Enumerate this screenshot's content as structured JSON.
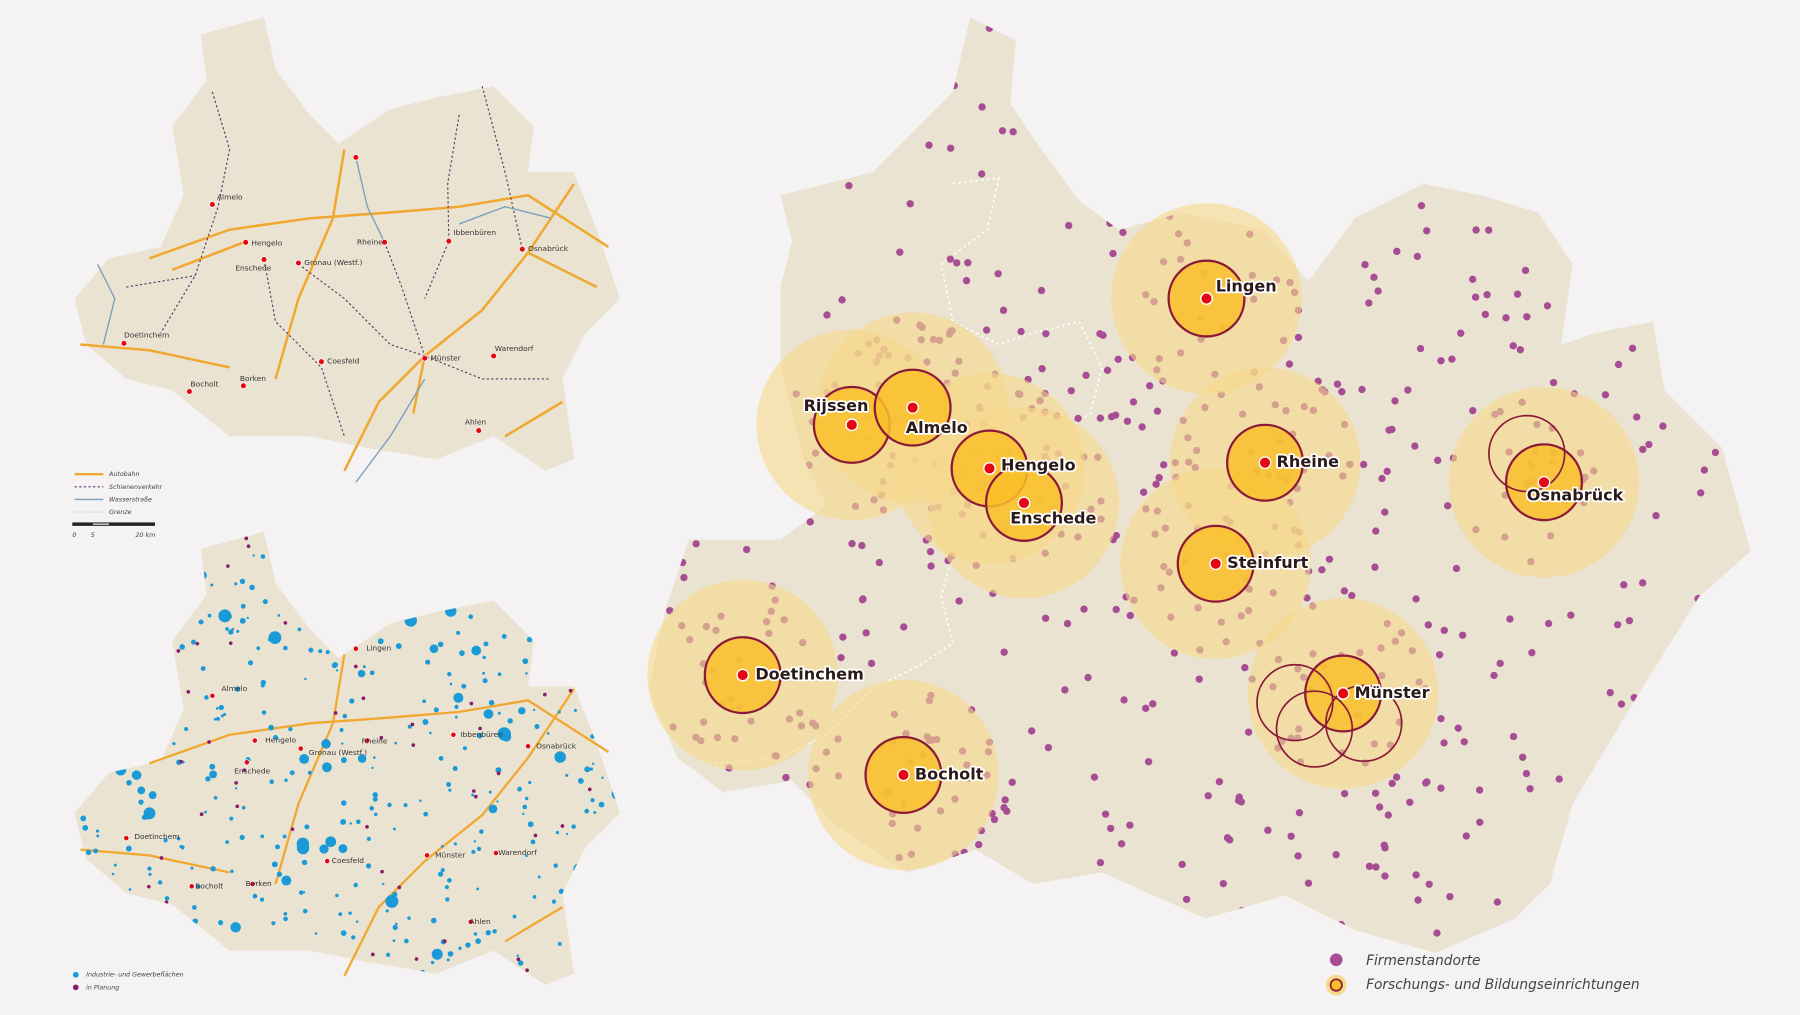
{
  "main_map": {
    "cities": [
      "Lingen",
      "Rijssen",
      "Almelo",
      "Hengelo",
      "Enschede",
      "Rheine",
      "Osnabrück",
      "Steinfurt",
      "Doetinchem",
      "Münster",
      "Bocholt"
    ],
    "legend": [
      "Firmenstandorte",
      "Forschungs- und Bildungseinrichtungen"
    ]
  },
  "overview_map": {
    "cities": [
      "Almelo",
      "Hengelo",
      "Enschede",
      "Gronau (Westf.)",
      "Rheine",
      "Ibbenbüren",
      "Osnabrück",
      "Doetinchem",
      "Coesfeld",
      "Münster",
      "Warendorf",
      "Bocholt",
      "Borken",
      "Ahlen"
    ],
    "legend": [
      "Autobahn",
      "Schienenverkehr",
      "Wasserstraße",
      "Grenze"
    ],
    "scale": [
      "0",
      "5",
      "20 km"
    ]
  },
  "planning_map": {
    "cities": [
      "Lingen",
      "Almelo",
      "Hengelo",
      "Enschede",
      "Gronau (Westf.)",
      "Rheine",
      "Ibbenbüren",
      "Osnabrück",
      "Doetinchem",
      "Münster",
      "Coesfeld",
      "Warendorf",
      "Bocholt",
      "Borken",
      "Ahlen"
    ],
    "legend": [
      "Industrie- und Gewerbeflächen",
      "in Planung"
    ]
  }
}
